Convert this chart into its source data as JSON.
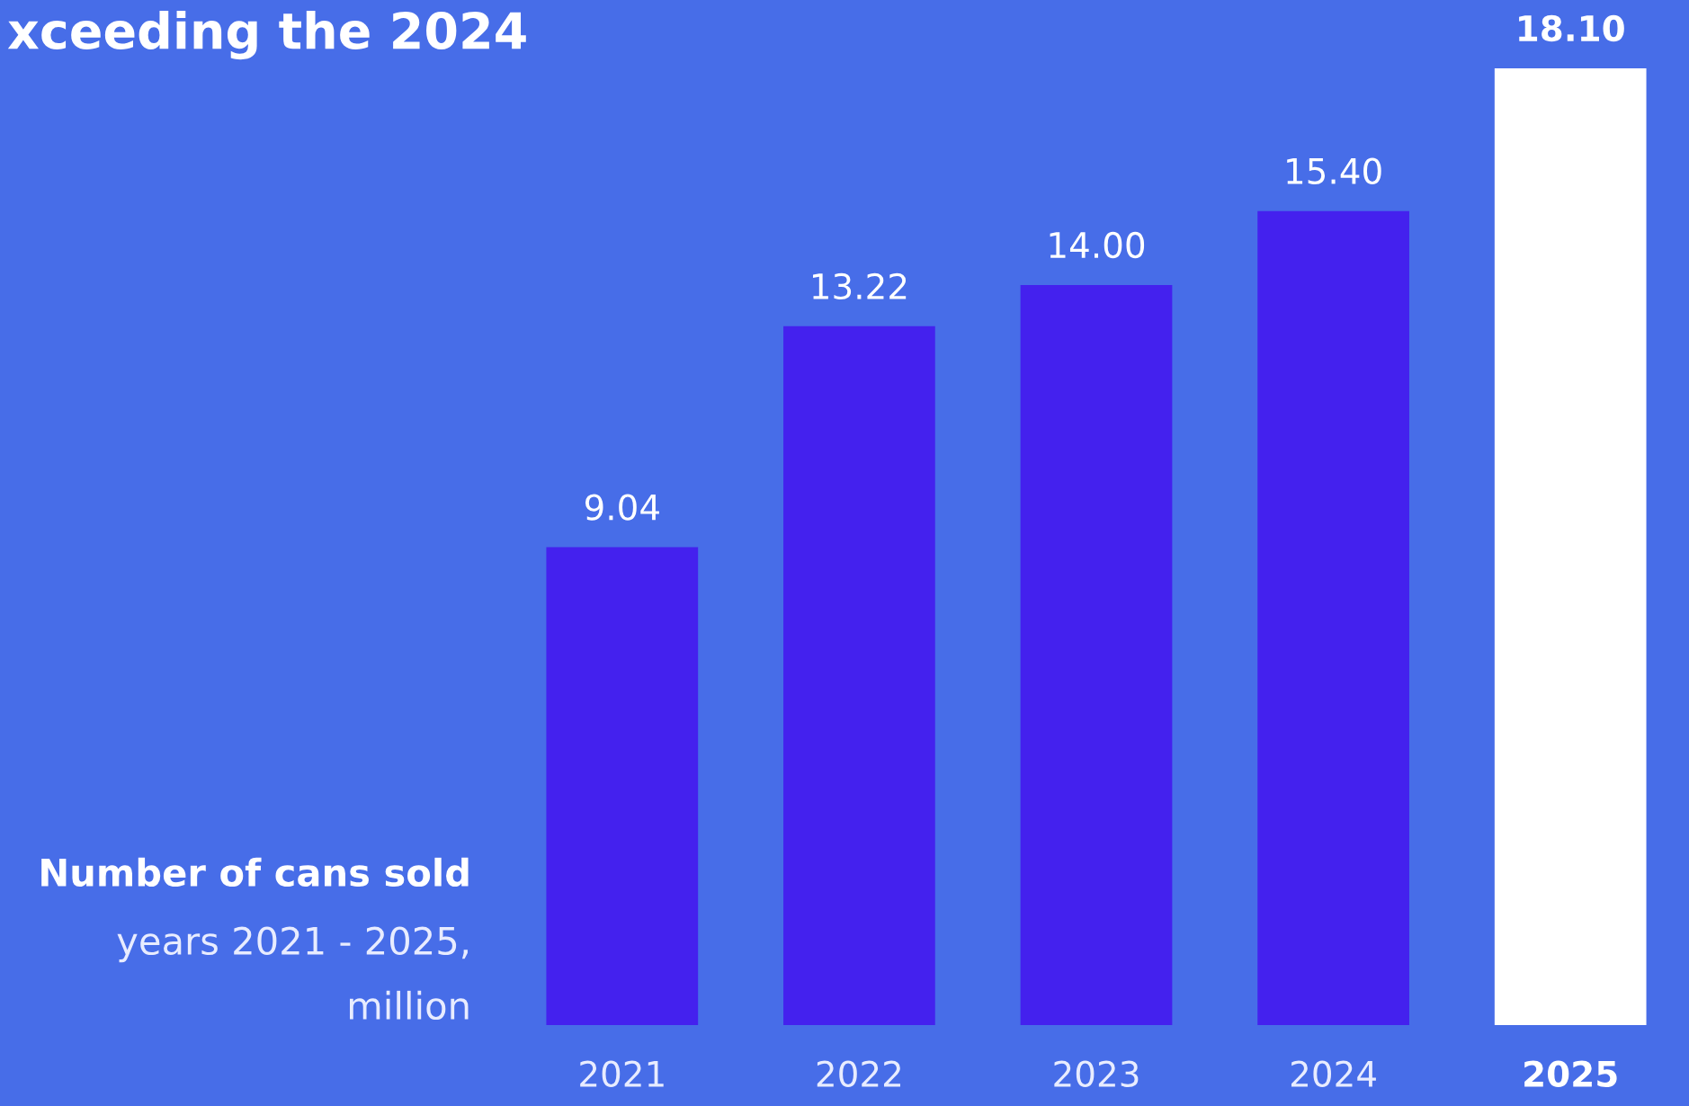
{
  "chart_data": {
    "type": "bar",
    "title": "xceeding the 2024",
    "categories": [
      "2021",
      "2022",
      "2023",
      "2024",
      "2025"
    ],
    "values": [
      9.04,
      13.22,
      14.0,
      15.4,
      18.1
    ],
    "value_labels": [
      "9.04",
      "13.22",
      "14.00",
      "15.40",
      "18.10"
    ],
    "colors": [
      "#4421ee",
      "#4421ee",
      "#4421ee",
      "#4421ee",
      "#ffffff"
    ],
    "annotations": [
      "Number of cans sold",
      "years 2021 - 2025,",
      "million"
    ],
    "grid": false,
    "legend": false
  }
}
